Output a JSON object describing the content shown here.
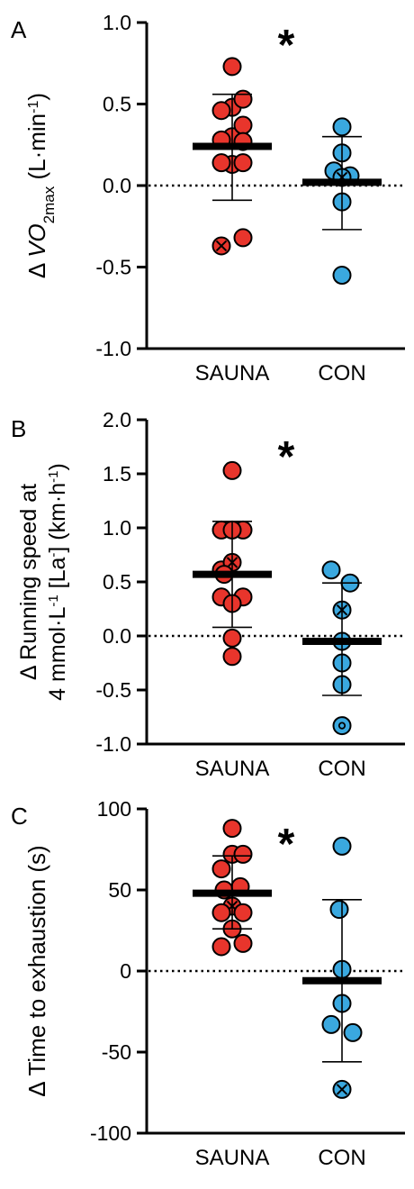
{
  "chart_data": [
    {
      "type": "scatter",
      "panel_label": "A",
      "ylabel_parts": [
        "Δ ",
        "V",
        "O",
        "2max",
        " (L·min",
        "-1",
        ")"
      ],
      "ylim": [
        -1.0,
        1.0
      ],
      "yticks": [
        1.0,
        0.5,
        0.0,
        -0.5,
        -1.0
      ],
      "ytick_labels": [
        "1.0",
        "0.5",
        "0.0",
        "-0.5",
        "-1.0"
      ],
      "categories": [
        "SAUNA",
        "CON"
      ],
      "significance": "*",
      "zero_line": true,
      "series": [
        {
          "color": "#e8352c",
          "mean": 0.24,
          "err_high": 0.56,
          "err_low": -0.09,
          "points": [
            {
              "x": 0.0,
              "y": 0.73
            },
            {
              "x": 0.0,
              "y": 0.48
            },
            {
              "x": 0.0,
              "y": 0.3
            },
            {
              "x": 0.0,
              "y": 0.13
            },
            {
              "x": -0.4,
              "y": 0.46
            },
            {
              "x": 0.4,
              "y": 0.53
            },
            {
              "x": -0.4,
              "y": 0.28
            },
            {
              "x": 0.4,
              "y": 0.37
            },
            {
              "x": 0.4,
              "y": 0.14
            },
            {
              "x": 0.4,
              "y": 0.27
            },
            {
              "x": -0.4,
              "y": 0.14
            },
            {
              "x": 0.4,
              "y": -0.32
            },
            {
              "x": -0.4,
              "y": -0.37,
              "marker": "x"
            }
          ]
        },
        {
          "color": "#3aa8df",
          "mean": 0.02,
          "err_high": 0.3,
          "err_low": -0.27,
          "points": [
            {
              "x": 0.0,
              "y": 0.36
            },
            {
              "x": 0.0,
              "y": 0.2
            },
            {
              "x": -0.3,
              "y": 0.09
            },
            {
              "x": 0.3,
              "y": 0.06
            },
            {
              "x": 0.0,
              "y": 0.05,
              "marker": "x"
            },
            {
              "x": 0.0,
              "y": -0.1
            },
            {
              "x": 0.0,
              "y": -0.55
            }
          ]
        }
      ]
    },
    {
      "type": "scatter",
      "panel_label": "B",
      "ylabel_line1": "Δ Running speed at",
      "ylabel_line2_parts": [
        "4 mmol·L",
        "-1",
        " [La",
        "-",
        "] (km·h",
        "-1",
        ")"
      ],
      "ylim": [
        -1.0,
        2.0
      ],
      "yticks": [
        2.0,
        1.5,
        1.0,
        0.5,
        0.0,
        -0.5,
        -1.0
      ],
      "ytick_labels": [
        "2.0",
        "1.5",
        "1.0",
        "0.5",
        "0.0",
        "-0.5",
        "-1.0"
      ],
      "categories": [
        "SAUNA",
        "CON"
      ],
      "significance": "*",
      "zero_line": true,
      "series": [
        {
          "color": "#e8352c",
          "mean": 0.57,
          "err_high": 1.06,
          "err_low": 0.08,
          "points": [
            {
              "x": 0.0,
              "y": 1.53
            },
            {
              "x": -0.4,
              "y": 0.98
            },
            {
              "x": 0.4,
              "y": 0.98
            },
            {
              "x": 0.0,
              "y": 0.98
            },
            {
              "x": -0.4,
              "y": 0.61
            },
            {
              "x": 0.0,
              "y": 0.68,
              "marker": "x"
            },
            {
              "x": -0.3,
              "y": 0.57
            },
            {
              "x": 0.4,
              "y": 0.36
            },
            {
              "x": -0.4,
              "y": 0.36
            },
            {
              "x": 0.0,
              "y": 0.3
            },
            {
              "x": 0.0,
              "y": -0.02
            },
            {
              "x": 0.0,
              "y": -0.19
            }
          ]
        },
        {
          "color": "#3aa8df",
          "mean": -0.05,
          "err_high": 0.49,
          "err_low": -0.55,
          "points": [
            {
              "x": -0.4,
              "y": 0.61
            },
            {
              "x": 0.3,
              "y": 0.49
            },
            {
              "x": 0.0,
              "y": 0.24,
              "marker": "x"
            },
            {
              "x": 0.0,
              "y": -0.05
            },
            {
              "x": 0.0,
              "y": -0.25
            },
            {
              "x": 0.0,
              "y": -0.45
            },
            {
              "x": 0.0,
              "y": -0.83,
              "marker": "dot"
            }
          ]
        }
      ]
    },
    {
      "type": "scatter",
      "panel_label": "C",
      "ylabel": "Δ Time to exhaustion (s)",
      "ylim": [
        -100,
        100
      ],
      "yticks": [
        100,
        50,
        0,
        -50,
        -100
      ],
      "ytick_labels": [
        "100",
        "50",
        "0",
        "-50",
        "-100"
      ],
      "categories": [
        "SAUNA",
        "CON"
      ],
      "significance": "*",
      "zero_line": true,
      "series": [
        {
          "color": "#e8352c",
          "mean": 48,
          "err_high": 71,
          "err_low": 26,
          "points": [
            {
              "x": 0.0,
              "y": 88
            },
            {
              "x": 0.0,
              "y": 72
            },
            {
              "x": -0.4,
              "y": 63
            },
            {
              "x": 0.4,
              "y": 72
            },
            {
              "x": -0.3,
              "y": 50
            },
            {
              "x": 0.3,
              "y": 52
            },
            {
              "x": 0.0,
              "y": 40,
              "marker": "x"
            },
            {
              "x": 0.4,
              "y": 36
            },
            {
              "x": -0.4,
              "y": 36
            },
            {
              "x": 0.0,
              "y": 26
            },
            {
              "x": -0.4,
              "y": 15
            },
            {
              "x": 0.4,
              "y": 17
            }
          ]
        },
        {
          "color": "#3aa8df",
          "mean": -6,
          "err_high": 44,
          "err_low": -56,
          "points": [
            {
              "x": 0.0,
              "y": 77
            },
            {
              "x": -0.1,
              "y": 38
            },
            {
              "x": 0.0,
              "y": 1
            },
            {
              "x": -0.4,
              "y": -33
            },
            {
              "x": 0.4,
              "y": -38
            },
            {
              "x": 0.0,
              "y": -20
            },
            {
              "x": 0.0,
              "y": -73,
              "marker": "x"
            }
          ]
        }
      ]
    }
  ]
}
